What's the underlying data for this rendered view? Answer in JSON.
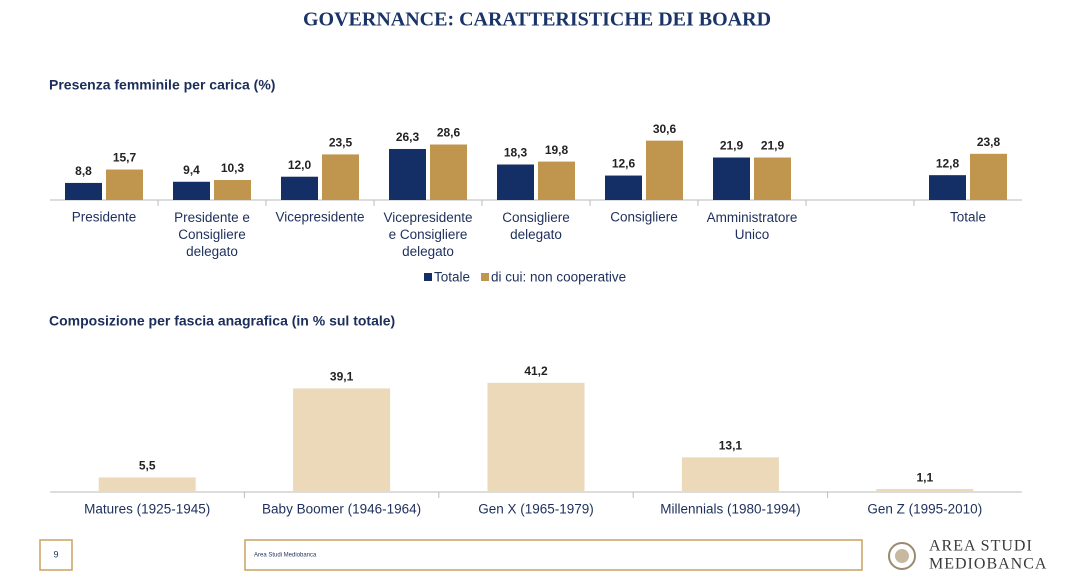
{
  "page_title": "GOVERNANCE: CARATTERISTICHE DEI BOARD",
  "chart_data": [
    {
      "type": "bar",
      "title": "Presenza femminile per carica (%)",
      "categories": [
        "Presidente",
        "Presidente e\nConsigliere\ndelegato",
        "Vicepresidente",
        "Vicepresidente\ne Consigliere\ndelegato",
        "Consigliere\ndelegato",
        "Consigliere",
        "Amministratore\nUnico",
        null,
        "Totale"
      ],
      "series": [
        {
          "name": "Totale",
          "color": "#132f66",
          "values": [
            8.8,
            9.4,
            12.0,
            26.3,
            18.3,
            12.6,
            21.9,
            null,
            12.8
          ],
          "value_labels": [
            "8,8",
            "9,4",
            "12,0",
            "26,3",
            "18,3",
            "12,6",
            "21,9",
            null,
            "12,8"
          ]
        },
        {
          "name": "di cui: non cooperative",
          "color": "#c0954d",
          "values": [
            15.7,
            10.3,
            23.5,
            28.6,
            19.8,
            30.6,
            21.9,
            null,
            23.8
          ],
          "value_labels": [
            "15,7",
            "10,3",
            "23,5",
            "28,6",
            "19,8",
            "30,6",
            "21,9",
            null,
            "23,8"
          ]
        }
      ],
      "legend": "bottom"
    },
    {
      "type": "bar",
      "title": "Composizione per fascia anagrafica (in % sul totale)",
      "categories": [
        "Matures (1925-1945)",
        "Baby Boomer (1946-1964)",
        "Gen X   (1965-1979)",
        "Millennials (1980-1994)",
        "Gen Z    (1995-2010)"
      ],
      "values": [
        5.5,
        39.1,
        41.2,
        13.1,
        1.1
      ],
      "value_labels": [
        "5,5",
        "39,1",
        "41,2",
        "13,1",
        "1,1"
      ],
      "color": "#ecd9ba"
    }
  ],
  "footer": {
    "page": "9",
    "source": "Area Studi Mediobanca",
    "logo": [
      "AREA STUDI",
      "MEDIOBANCA"
    ]
  }
}
